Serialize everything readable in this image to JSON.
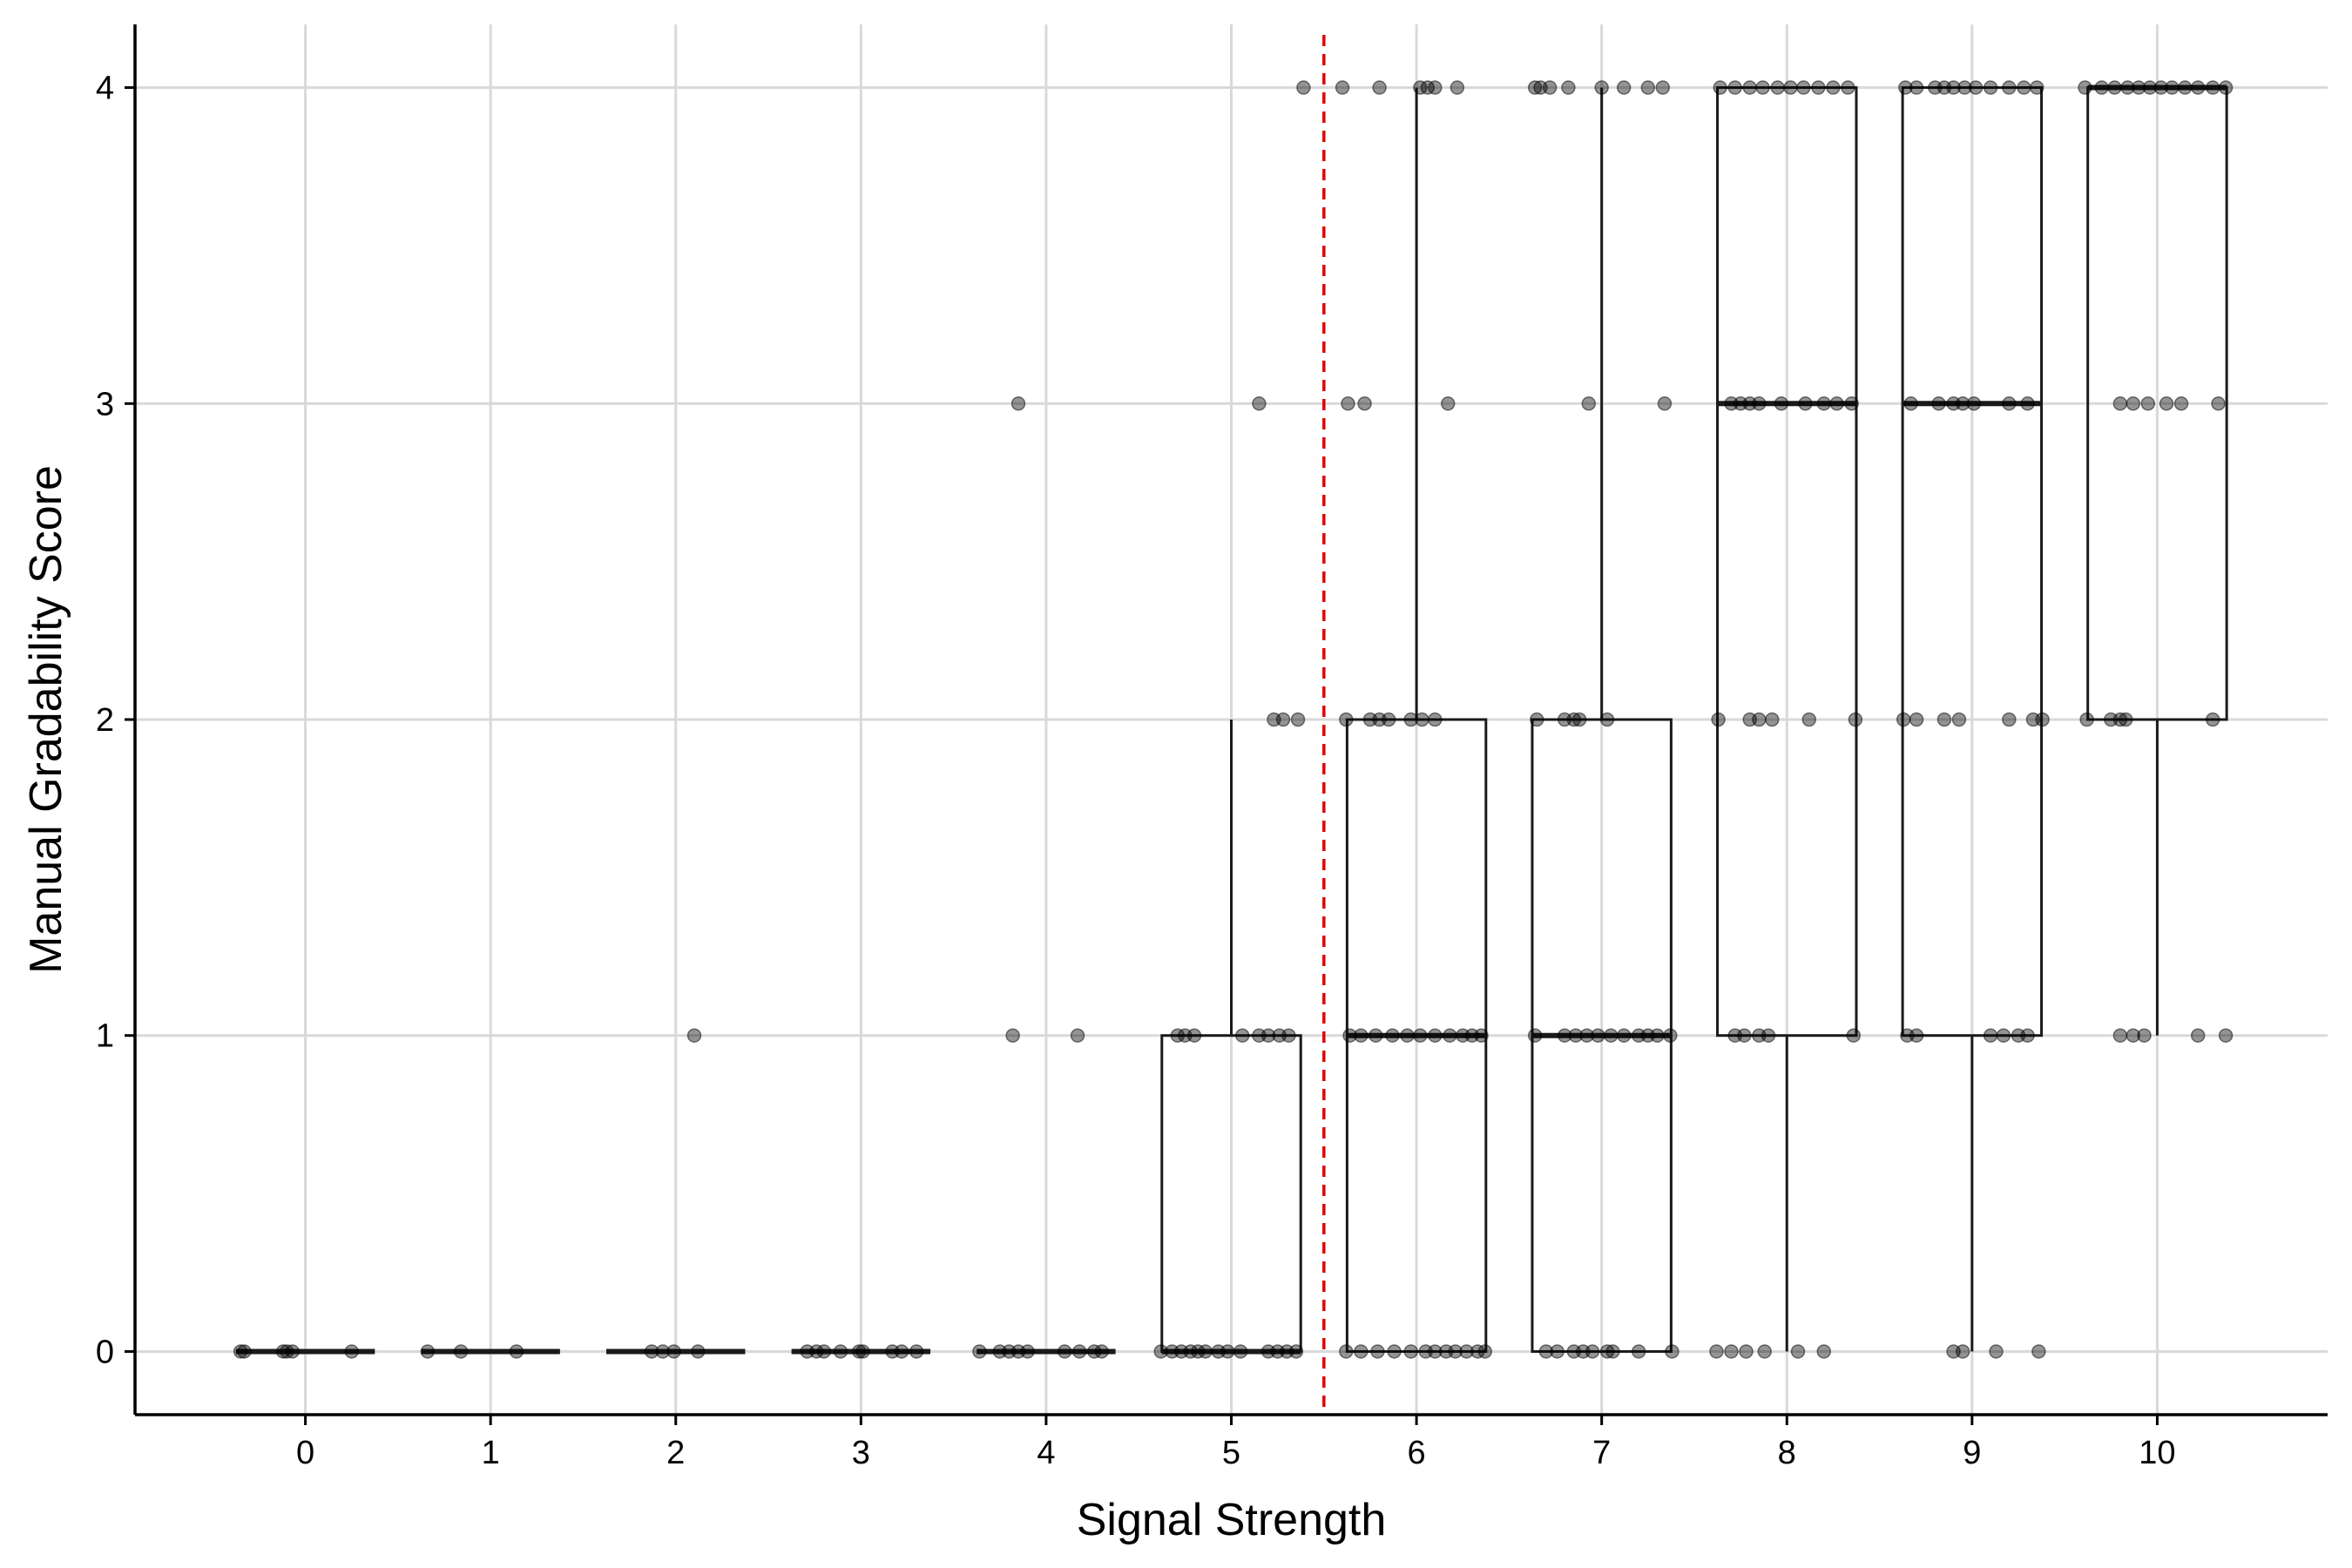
{
  "chart_data": {
    "type": "box",
    "title": "",
    "xlabel": "Signal Strength",
    "ylabel": "Manual Gradability Score",
    "x_ticks": [
      "0",
      "1",
      "2",
      "3",
      "4",
      "5",
      "6",
      "7",
      "8",
      "9",
      "10"
    ],
    "y_ticks": [
      "0",
      "1",
      "2",
      "3",
      "4"
    ],
    "xlim": [
      -0.92,
      10.92
    ],
    "ylim": [
      -0.2,
      4.2
    ],
    "grid": true,
    "legend": "none",
    "threshold_line": {
      "x": 5.5,
      "color": "#e00000",
      "style": "dashed"
    },
    "colors": {
      "box": "#1a1a1a",
      "point": "#000000",
      "grid": "#d9d9d9",
      "axis": "#000000"
    },
    "boxes": [
      {
        "x": 0,
        "q1": 0,
        "median": 0,
        "q3": 0,
        "whisker_low": 0,
        "whisker_high": 0
      },
      {
        "x": 1,
        "q1": 0,
        "median": 0,
        "q3": 0,
        "whisker_low": 0,
        "whisker_high": 0
      },
      {
        "x": 2,
        "q1": 0,
        "median": 0,
        "q3": 0,
        "whisker_low": 0,
        "whisker_high": 0
      },
      {
        "x": 3,
        "q1": 0,
        "median": 0,
        "q3": 0,
        "whisker_low": 0,
        "whisker_high": 0
      },
      {
        "x": 4,
        "q1": 0,
        "median": 0,
        "q3": 0,
        "whisker_low": 0,
        "whisker_high": 0
      },
      {
        "x": 5,
        "q1": 0,
        "median": 0,
        "q3": 1,
        "whisker_low": 0,
        "whisker_high": 2
      },
      {
        "x": 6,
        "q1": 0,
        "median": 1,
        "q3": 2,
        "whisker_low": 0,
        "whisker_high": 4
      },
      {
        "x": 7,
        "q1": 0,
        "median": 1,
        "q3": 2,
        "whisker_low": 0,
        "whisker_high": 4
      },
      {
        "x": 8,
        "q1": 1,
        "median": 3,
        "q3": 4,
        "whisker_low": 0,
        "whisker_high": 4
      },
      {
        "x": 9,
        "q1": 1,
        "median": 3,
        "q3": 4,
        "whisker_low": 0,
        "whisker_high": 4
      },
      {
        "x": 10,
        "q1": 2,
        "median": 4,
        "q3": 4,
        "whisker_low": 1,
        "whisker_high": 4
      }
    ],
    "points": [
      {
        "x": -0.35,
        "y": 0
      },
      {
        "x": -0.33,
        "y": 0
      },
      {
        "x": -0.12,
        "y": 0
      },
      {
        "x": -0.1,
        "y": 0
      },
      {
        "x": -0.07,
        "y": 0
      },
      {
        "x": 0.25,
        "y": 0
      },
      {
        "x": 0.66,
        "y": 0
      },
      {
        "x": 0.84,
        "y": 0
      },
      {
        "x": 1.14,
        "y": 0
      },
      {
        "x": 1.87,
        "y": 0
      },
      {
        "x": 1.93,
        "y": 0
      },
      {
        "x": 1.99,
        "y": 0
      },
      {
        "x": 2.12,
        "y": 0
      },
      {
        "x": 2.1,
        "y": 1
      },
      {
        "x": 2.71,
        "y": 0
      },
      {
        "x": 2.76,
        "y": 0
      },
      {
        "x": 2.8,
        "y": 0
      },
      {
        "x": 2.89,
        "y": 0
      },
      {
        "x": 2.99,
        "y": 0
      },
      {
        "x": 3.01,
        "y": 0
      },
      {
        "x": 3.17,
        "y": 0
      },
      {
        "x": 3.22,
        "y": 0
      },
      {
        "x": 3.3,
        "y": 0
      },
      {
        "x": 3.64,
        "y": 0
      },
      {
        "x": 3.75,
        "y": 0
      },
      {
        "x": 3.8,
        "y": 0
      },
      {
        "x": 3.85,
        "y": 0
      },
      {
        "x": 3.9,
        "y": 0
      },
      {
        "x": 4.1,
        "y": 0
      },
      {
        "x": 4.18,
        "y": 0
      },
      {
        "x": 4.26,
        "y": 0
      },
      {
        "x": 4.3,
        "y": 0
      },
      {
        "x": 3.82,
        "y": 1
      },
      {
        "x": 4.17,
        "y": 1
      },
      {
        "x": 3.85,
        "y": 3
      },
      {
        "x": 4.62,
        "y": 0
      },
      {
        "x": 4.68,
        "y": 0
      },
      {
        "x": 4.73,
        "y": 0
      },
      {
        "x": 4.78,
        "y": 0
      },
      {
        "x": 4.82,
        "y": 0
      },
      {
        "x": 4.86,
        "y": 0
      },
      {
        "x": 4.93,
        "y": 0
      },
      {
        "x": 4.98,
        "y": 0
      },
      {
        "x": 5.05,
        "y": 0
      },
      {
        "x": 5.2,
        "y": 0
      },
      {
        "x": 5.25,
        "y": 0
      },
      {
        "x": 5.3,
        "y": 0
      },
      {
        "x": 5.35,
        "y": 0
      },
      {
        "x": 4.71,
        "y": 1
      },
      {
        "x": 4.75,
        "y": 1
      },
      {
        "x": 4.8,
        "y": 1
      },
      {
        "x": 5.06,
        "y": 1
      },
      {
        "x": 5.15,
        "y": 1
      },
      {
        "x": 5.2,
        "y": 1
      },
      {
        "x": 5.26,
        "y": 1
      },
      {
        "x": 5.31,
        "y": 1
      },
      {
        "x": 5.23,
        "y": 2
      },
      {
        "x": 5.28,
        "y": 2
      },
      {
        "x": 5.36,
        "y": 2
      },
      {
        "x": 5.15,
        "y": 3
      },
      {
        "x": 5.39,
        "y": 4
      },
      {
        "x": 5.62,
        "y": 0
      },
      {
        "x": 5.7,
        "y": 0
      },
      {
        "x": 5.79,
        "y": 0
      },
      {
        "x": 5.88,
        "y": 0
      },
      {
        "x": 5.97,
        "y": 0
      },
      {
        "x": 6.05,
        "y": 0
      },
      {
        "x": 6.1,
        "y": 0
      },
      {
        "x": 6.16,
        "y": 0
      },
      {
        "x": 6.21,
        "y": 0
      },
      {
        "x": 6.27,
        "y": 0
      },
      {
        "x": 6.33,
        "y": 0
      },
      {
        "x": 6.37,
        "y": 0
      },
      {
        "x": 5.64,
        "y": 1
      },
      {
        "x": 5.7,
        "y": 1
      },
      {
        "x": 5.78,
        "y": 1
      },
      {
        "x": 5.87,
        "y": 1
      },
      {
        "x": 5.95,
        "y": 1
      },
      {
        "x": 6.02,
        "y": 1
      },
      {
        "x": 6.1,
        "y": 1
      },
      {
        "x": 6.18,
        "y": 1
      },
      {
        "x": 6.25,
        "y": 1
      },
      {
        "x": 6.3,
        "y": 1
      },
      {
        "x": 6.35,
        "y": 1
      },
      {
        "x": 5.62,
        "y": 2
      },
      {
        "x": 5.75,
        "y": 2
      },
      {
        "x": 5.8,
        "y": 2
      },
      {
        "x": 5.85,
        "y": 2
      },
      {
        "x": 5.97,
        "y": 2
      },
      {
        "x": 6.03,
        "y": 2
      },
      {
        "x": 6.1,
        "y": 2
      },
      {
        "x": 5.63,
        "y": 3
      },
      {
        "x": 5.72,
        "y": 3
      },
      {
        "x": 6.17,
        "y": 3
      },
      {
        "x": 5.6,
        "y": 4
      },
      {
        "x": 5.8,
        "y": 4
      },
      {
        "x": 6.02,
        "y": 4
      },
      {
        "x": 6.06,
        "y": 4
      },
      {
        "x": 6.1,
        "y": 4
      },
      {
        "x": 6.22,
        "y": 4
      },
      {
        "x": 6.7,
        "y": 0
      },
      {
        "x": 6.76,
        "y": 0
      },
      {
        "x": 6.85,
        "y": 0
      },
      {
        "x": 6.9,
        "y": 0
      },
      {
        "x": 6.95,
        "y": 0
      },
      {
        "x": 7.03,
        "y": 0
      },
      {
        "x": 7.06,
        "y": 0
      },
      {
        "x": 7.2,
        "y": 0
      },
      {
        "x": 7.38,
        "y": 0
      },
      {
        "x": 6.64,
        "y": 1
      },
      {
        "x": 6.8,
        "y": 1
      },
      {
        "x": 6.86,
        "y": 1
      },
      {
        "x": 6.92,
        "y": 1
      },
      {
        "x": 6.98,
        "y": 1
      },
      {
        "x": 7.05,
        "y": 1
      },
      {
        "x": 7.12,
        "y": 1
      },
      {
        "x": 7.2,
        "y": 1
      },
      {
        "x": 7.25,
        "y": 1
      },
      {
        "x": 7.3,
        "y": 1
      },
      {
        "x": 7.37,
        "y": 1
      },
      {
        "x": 6.65,
        "y": 2
      },
      {
        "x": 6.8,
        "y": 2
      },
      {
        "x": 6.85,
        "y": 2
      },
      {
        "x": 6.88,
        "y": 2
      },
      {
        "x": 7.03,
        "y": 2
      },
      {
        "x": 6.93,
        "y": 3
      },
      {
        "x": 7.34,
        "y": 3
      },
      {
        "x": 6.64,
        "y": 4
      },
      {
        "x": 6.67,
        "y": 4
      },
      {
        "x": 6.72,
        "y": 4
      },
      {
        "x": 6.82,
        "y": 4
      },
      {
        "x": 7.0,
        "y": 4
      },
      {
        "x": 7.12,
        "y": 4
      },
      {
        "x": 7.25,
        "y": 4
      },
      {
        "x": 7.33,
        "y": 4
      },
      {
        "x": 7.62,
        "y": 0
      },
      {
        "x": 7.7,
        "y": 0
      },
      {
        "x": 7.78,
        "y": 0
      },
      {
        "x": 7.88,
        "y": 0
      },
      {
        "x": 8.06,
        "y": 0
      },
      {
        "x": 8.2,
        "y": 0
      },
      {
        "x": 7.72,
        "y": 1
      },
      {
        "x": 7.77,
        "y": 1
      },
      {
        "x": 7.85,
        "y": 1
      },
      {
        "x": 7.9,
        "y": 1
      },
      {
        "x": 8.36,
        "y": 1
      },
      {
        "x": 7.63,
        "y": 2
      },
      {
        "x": 7.8,
        "y": 2
      },
      {
        "x": 7.85,
        "y": 2
      },
      {
        "x": 7.92,
        "y": 2
      },
      {
        "x": 8.12,
        "y": 2
      },
      {
        "x": 8.37,
        "y": 2
      },
      {
        "x": 7.7,
        "y": 3
      },
      {
        "x": 7.75,
        "y": 3
      },
      {
        "x": 7.8,
        "y": 3
      },
      {
        "x": 7.85,
        "y": 3
      },
      {
        "x": 7.97,
        "y": 3
      },
      {
        "x": 8.1,
        "y": 3
      },
      {
        "x": 8.2,
        "y": 3
      },
      {
        "x": 8.27,
        "y": 3
      },
      {
        "x": 8.35,
        "y": 3
      },
      {
        "x": 7.64,
        "y": 4
      },
      {
        "x": 7.72,
        "y": 4
      },
      {
        "x": 7.8,
        "y": 4
      },
      {
        "x": 7.87,
        "y": 4
      },
      {
        "x": 7.95,
        "y": 4
      },
      {
        "x": 8.02,
        "y": 4
      },
      {
        "x": 8.09,
        "y": 4
      },
      {
        "x": 8.17,
        "y": 4
      },
      {
        "x": 8.25,
        "y": 4
      },
      {
        "x": 8.33,
        "y": 4
      },
      {
        "x": 8.9,
        "y": 0
      },
      {
        "x": 8.95,
        "y": 0
      },
      {
        "x": 9.13,
        "y": 0
      },
      {
        "x": 9.36,
        "y": 0
      },
      {
        "x": 8.65,
        "y": 1
      },
      {
        "x": 8.7,
        "y": 1
      },
      {
        "x": 9.1,
        "y": 1
      },
      {
        "x": 9.17,
        "y": 1
      },
      {
        "x": 9.25,
        "y": 1
      },
      {
        "x": 9.3,
        "y": 1
      },
      {
        "x": 8.63,
        "y": 2
      },
      {
        "x": 8.7,
        "y": 2
      },
      {
        "x": 8.85,
        "y": 2
      },
      {
        "x": 8.93,
        "y": 2
      },
      {
        "x": 9.2,
        "y": 2
      },
      {
        "x": 9.33,
        "y": 2
      },
      {
        "x": 9.38,
        "y": 2
      },
      {
        "x": 8.67,
        "y": 3
      },
      {
        "x": 8.82,
        "y": 3
      },
      {
        "x": 8.9,
        "y": 3
      },
      {
        "x": 8.95,
        "y": 3
      },
      {
        "x": 9.01,
        "y": 3
      },
      {
        "x": 9.2,
        "y": 3
      },
      {
        "x": 9.3,
        "y": 3
      },
      {
        "x": 8.64,
        "y": 4
      },
      {
        "x": 8.7,
        "y": 4
      },
      {
        "x": 8.8,
        "y": 4
      },
      {
        "x": 8.85,
        "y": 4
      },
      {
        "x": 8.9,
        "y": 4
      },
      {
        "x": 8.96,
        "y": 4
      },
      {
        "x": 9.02,
        "y": 4
      },
      {
        "x": 9.1,
        "y": 4
      },
      {
        "x": 9.2,
        "y": 4
      },
      {
        "x": 9.28,
        "y": 4
      },
      {
        "x": 9.35,
        "y": 4
      },
      {
        "x": 9.8,
        "y": 1
      },
      {
        "x": 9.87,
        "y": 1
      },
      {
        "x": 9.93,
        "y": 1
      },
      {
        "x": 10.22,
        "y": 1
      },
      {
        "x": 10.37,
        "y": 1
      },
      {
        "x": 9.62,
        "y": 2
      },
      {
        "x": 9.75,
        "y": 2
      },
      {
        "x": 9.8,
        "y": 2
      },
      {
        "x": 9.83,
        "y": 2
      },
      {
        "x": 10.3,
        "y": 2
      },
      {
        "x": 9.8,
        "y": 3
      },
      {
        "x": 9.87,
        "y": 3
      },
      {
        "x": 9.95,
        "y": 3
      },
      {
        "x": 10.05,
        "y": 3
      },
      {
        "x": 10.13,
        "y": 3
      },
      {
        "x": 10.33,
        "y": 3
      },
      {
        "x": 9.61,
        "y": 4
      },
      {
        "x": 9.7,
        "y": 4
      },
      {
        "x": 9.77,
        "y": 4
      },
      {
        "x": 9.84,
        "y": 4
      },
      {
        "x": 9.9,
        "y": 4
      },
      {
        "x": 9.96,
        "y": 4
      },
      {
        "x": 10.02,
        "y": 4
      },
      {
        "x": 10.08,
        "y": 4
      },
      {
        "x": 10.15,
        "y": 4
      },
      {
        "x": 10.22,
        "y": 4
      },
      {
        "x": 10.3,
        "y": 4
      },
      {
        "x": 10.37,
        "y": 4
      }
    ]
  }
}
